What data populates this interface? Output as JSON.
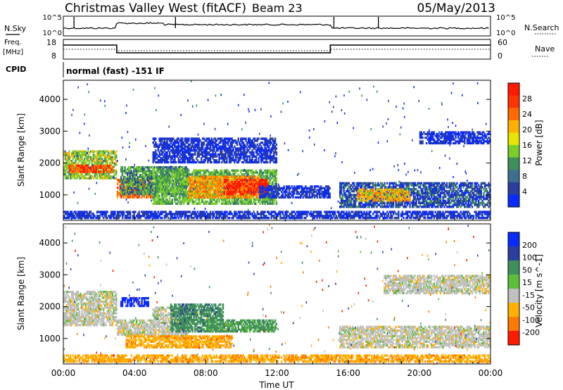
{
  "header": {
    "station": "Christmas Valley West (fitACF)",
    "beam": "Beam 23",
    "date": "05/May/2013"
  },
  "top_panel": {
    "left_label": "N.Sky",
    "right_label": "N.Search",
    "y_ticks_left": [
      "10^5",
      "10^0"
    ],
    "y_ticks_right": [
      "10^5",
      "10^0"
    ]
  },
  "freq_panel": {
    "left_label_line1": "Freq.",
    "left_label_line2": "[MHz]",
    "right_label": "Nave",
    "y_ticks_left": [
      "18",
      "8"
    ],
    "y_ticks_right": [
      "60",
      "0"
    ],
    "cpid_label": "CPID",
    "cpid_text": "normal (fast) -151 IF"
  },
  "colors": {
    "blue": "#0018ff",
    "blue_dark": "#1a3aa0",
    "teal": "#2e7d6b",
    "green": "#5bbf3a",
    "yellow": "#e6e600",
    "orange": "#ff8c00",
    "red": "#ff1a00",
    "grey": "#c0c0c0"
  },
  "chart_data": [
    {
      "type": "heatmap",
      "title": "",
      "xlabel": "Time UT",
      "ylabel": "Slant Range [km]",
      "x_ticks": [
        "00:00",
        "04:00",
        "08:00",
        "12:00",
        "16:00",
        "20:00",
        "00:00"
      ],
      "y_ticks": [
        "1000",
        "2000",
        "3000",
        "4000"
      ],
      "x_range_hours": [
        0,
        24
      ],
      "ylim": [
        200,
        4600
      ],
      "colorbar": {
        "label": "Power [dB]",
        "ticks": [
          "4",
          "8",
          "12",
          "16",
          "20",
          "24",
          "28"
        ],
        "range": [
          0,
          30
        ]
      },
      "regions": [
        {
          "t0": 0.0,
          "t1": 3.0,
          "r0": 1500,
          "r1": 2400,
          "value": 16
        },
        {
          "t0": 0.3,
          "t1": 2.8,
          "r0": 1700,
          "r1": 1950,
          "value": 26
        },
        {
          "t0": 3.0,
          "t1": 5.0,
          "r0": 900,
          "r1": 1500,
          "value": 24
        },
        {
          "t0": 3.2,
          "t1": 7.0,
          "r0": 1000,
          "r1": 1900,
          "value": 12
        },
        {
          "t0": 5.0,
          "t1": 12.0,
          "r0": 700,
          "r1": 1800,
          "value": 14
        },
        {
          "t0": 7.0,
          "t1": 11.0,
          "r0": 900,
          "r1": 1600,
          "value": 22
        },
        {
          "t0": 9.0,
          "t1": 11.5,
          "r0": 1000,
          "r1": 1500,
          "value": 28
        },
        {
          "t0": 11.0,
          "t1": 15.0,
          "r0": 900,
          "r1": 1300,
          "value": 6
        },
        {
          "t0": 15.5,
          "t1": 24.0,
          "r0": 600,
          "r1": 1400,
          "value": 8
        },
        {
          "t0": 16.5,
          "t1": 19.5,
          "r0": 800,
          "r1": 1200,
          "value": 20
        },
        {
          "t0": 0.0,
          "t1": 24.0,
          "r0": 250,
          "r1": 500,
          "value": 6
        },
        {
          "t0": 5.0,
          "t1": 12.0,
          "r0": 2000,
          "r1": 2800,
          "value": 6
        },
        {
          "t0": 20.0,
          "t1": 24.0,
          "r0": 2600,
          "r1": 3000,
          "value": 5
        }
      ]
    },
    {
      "type": "heatmap",
      "title": "",
      "xlabel": "Time UT",
      "ylabel": "Slant Range [km]",
      "x_ticks": [
        "00:00",
        "04:00",
        "08:00",
        "12:00",
        "16:00",
        "20:00",
        "00:00"
      ],
      "y_ticks": [
        "1000",
        "2000",
        "3000",
        "4000"
      ],
      "x_range_hours": [
        0,
        24
      ],
      "ylim": [
        200,
        4600
      ],
      "colorbar": {
        "label": "Velocity [m s^-1]",
        "ticks": [
          "200",
          "100",
          "50",
          "15",
          "-15",
          "-50",
          "-100",
          "-200"
        ],
        "range": [
          -250,
          250
        ]
      },
      "regions": [
        {
          "t0": 0.0,
          "t1": 3.0,
          "r0": 1400,
          "r1": 2500,
          "value": 0
        },
        {
          "t0": 3.0,
          "t1": 5.0,
          "r0": 1100,
          "r1": 1600,
          "value": 0
        },
        {
          "t0": 3.2,
          "t1": 4.8,
          "r0": 2000,
          "r1": 2300,
          "value": 180
        },
        {
          "t0": 5.0,
          "t1": 7.0,
          "r0": 1000,
          "r1": 2000,
          "value": 0
        },
        {
          "t0": 6.0,
          "t1": 9.0,
          "r0": 1200,
          "r1": 2100,
          "value": 60
        },
        {
          "t0": 3.5,
          "t1": 9.5,
          "r0": 700,
          "r1": 1100,
          "value": -40
        },
        {
          "t0": 8.0,
          "t1": 12.0,
          "r0": 1200,
          "r1": 1600,
          "value": 40
        },
        {
          "t0": 15.5,
          "t1": 24.0,
          "r0": 700,
          "r1": 1400,
          "value": 0
        },
        {
          "t0": 0.0,
          "t1": 24.0,
          "r0": 250,
          "r1": 500,
          "value": -40
        },
        {
          "t0": 18.0,
          "t1": 24.0,
          "r0": 2400,
          "r1": 3000,
          "value": 0
        }
      ]
    }
  ]
}
